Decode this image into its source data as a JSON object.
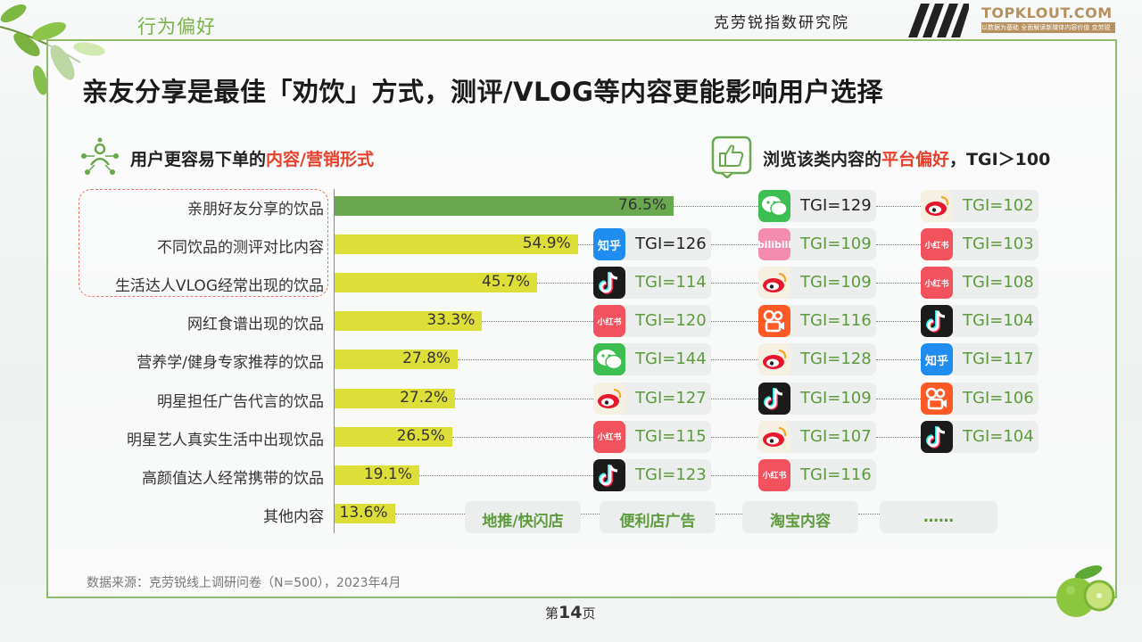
{
  "header": {
    "section_tag": "行为偏好",
    "org_name": "克劳锐指数研究院",
    "logo_text": "TOPKLOUT.COM",
    "logo_sub": "以数据为基础 全面解读新媒体内容价值 克劳锐"
  },
  "title": "亲友分享是最佳「劝饮」方式，测评/VLOG等内容更能影响用户选择",
  "left_heading": {
    "prefix": "用户更容易下单的",
    "highlight": "内容/营销形式"
  },
  "right_heading": {
    "prefix": "浏览该类内容的",
    "highlight": "平台偏好",
    "suffix": "，TGI＞100"
  },
  "chart_data": {
    "type": "bar",
    "orientation": "horizontal",
    "categories": [
      "亲朋好友分享的饮品",
      "不同饮品的测评对比内容",
      "生活达人VLOG经常出现的饮品",
      "网红食谱出现的饮品",
      "营养学/健身专家推荐的饮品",
      "明星担任广告代言的饮品",
      "明星艺人真实生活中出现饮品",
      "高颜值达人经常携带的饮品",
      "其他内容"
    ],
    "values": [
      76.5,
      54.9,
      45.7,
      33.3,
      27.8,
      27.2,
      26.5,
      19.1,
      13.6
    ],
    "value_labels": [
      "76.5%",
      "54.9%",
      "45.7%",
      "33.3%",
      "27.8%",
      "27.2%",
      "26.5%",
      "19.1%",
      "13.6%"
    ],
    "highlight_color": "#6aa84f",
    "bar_color": "#dede38",
    "xlim": [
      0,
      100
    ]
  },
  "platform_prefs": [
    [
      null,
      {
        "icon": "wechat-icon",
        "label": "TGI=129",
        "dark": true
      },
      {
        "icon": "weibo-icon",
        "label": "TGI=102"
      }
    ],
    [
      {
        "icon": "zhihu-icon",
        "label": "TGI=126",
        "dark": true
      },
      {
        "icon": "bilibili-icon",
        "label": "TGI=109"
      },
      {
        "icon": "xiaohongshu-icon",
        "label": "TGI=103"
      }
    ],
    [
      {
        "icon": "douyin-icon",
        "label": "TGI=114"
      },
      {
        "icon": "weibo-icon",
        "label": "TGI=109"
      },
      {
        "icon": "xiaohongshu-icon",
        "label": "TGI=108"
      }
    ],
    [
      {
        "icon": "xiaohongshu-icon",
        "label": "TGI=120"
      },
      {
        "icon": "kuaishou-icon",
        "label": "TGI=116"
      },
      {
        "icon": "douyin-icon",
        "label": "TGI=104"
      }
    ],
    [
      {
        "icon": "wechat-icon",
        "label": "TGI=144"
      },
      {
        "icon": "weibo-icon",
        "label": "TGI=128"
      },
      {
        "icon": "zhihu-icon",
        "label": "TGI=117"
      }
    ],
    [
      {
        "icon": "weibo-icon",
        "label": "TGI=127"
      },
      {
        "icon": "douyin-icon",
        "label": "TGI=109"
      },
      {
        "icon": "kuaishou-icon",
        "label": "TGI=106"
      }
    ],
    [
      {
        "icon": "xiaohongshu-icon",
        "label": "TGI=115"
      },
      {
        "icon": "weibo-icon",
        "label": "TGI=107"
      },
      {
        "icon": "douyin-icon",
        "label": "TGI=104"
      }
    ],
    [
      {
        "icon": "douyin-icon",
        "label": "TGI=123"
      },
      {
        "icon": "xiaohongshu-icon",
        "label": "TGI=116"
      },
      null
    ]
  ],
  "other_items": [
    "地推/快闪店",
    "便利店广告",
    "淘宝内容",
    "……"
  ],
  "platform_glyphs": {
    "zhihu-icon": "知乎",
    "bilibili-icon": "bilibili",
    "xiaohongshu-icon": "小红书"
  },
  "source": "数据来源：克劳锐线上调研问卷（N=500），2023年4月",
  "page": {
    "prefix": "第",
    "num": "14",
    "suffix": "页"
  }
}
